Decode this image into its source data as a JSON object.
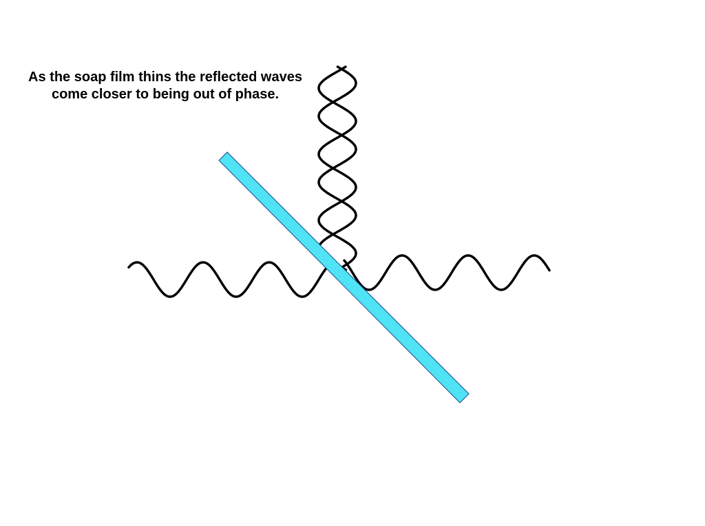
{
  "slide": {
    "caption": "As the soap film thins the reflected waves come closer to being out of phase."
  },
  "diagram": {
    "film_color": "#4FE3F5",
    "film_stroke": "#1a4a8a",
    "wave_color": "#000000",
    "elements": [
      "incident-wave",
      "transmitted-wave",
      "reflected-wave-1",
      "reflected-wave-2",
      "soap-film"
    ]
  }
}
